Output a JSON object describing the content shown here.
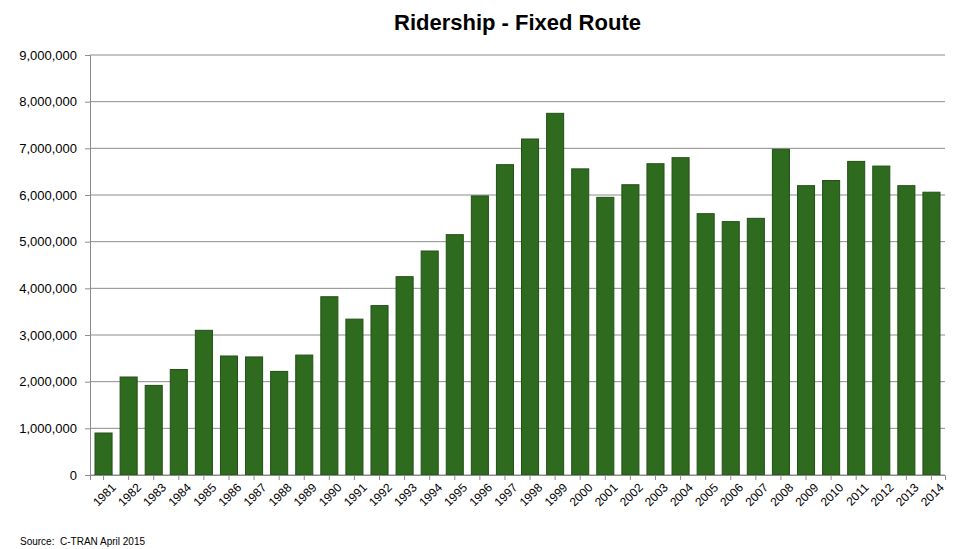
{
  "chart_data": {
    "type": "bar",
    "title": "Ridership - Fixed Route",
    "categories": [
      "1981",
      "1982",
      "1983",
      "1984",
      "1985",
      "1986",
      "1987",
      "1988",
      "1989",
      "1990",
      "1991",
      "1992",
      "1993",
      "1994",
      "1995",
      "1996",
      "1997",
      "1998",
      "1999",
      "2000",
      "2001",
      "2002",
      "2003",
      "2004",
      "2005",
      "2006",
      "2007",
      "2008",
      "2009",
      "2010",
      "2011",
      "2012",
      "2013",
      "2014"
    ],
    "values": [
      900000,
      2100000,
      1920000,
      2260000,
      3100000,
      2550000,
      2530000,
      2220000,
      2570000,
      3820000,
      3340000,
      3630000,
      4250000,
      4800000,
      5150000,
      5980000,
      6650000,
      7200000,
      7750000,
      6560000,
      5950000,
      6220000,
      6670000,
      6800000,
      5600000,
      5430000,
      5500000,
      6980000,
      6200000,
      6310000,
      6720000,
      6620000,
      6200000,
      6060000
    ],
    "color": "#2e6b1e",
    "ylim": [
      0,
      9000000
    ],
    "yticks": [
      0,
      {
        "value": 1000000,
        "label": "1,000,000"
      },
      {
        "value": 2000000,
        "label": "2,000,000"
      },
      {
        "value": 3000000,
        "label": "3,000,000"
      },
      {
        "value": 4000000,
        "label": "4,000,000"
      },
      {
        "value": 5000000,
        "label": "5,000,000"
      },
      {
        "value": 6000000,
        "label": "6,000,000"
      },
      {
        "value": 7000000,
        "label": "7,000,000"
      },
      {
        "value": 8000000,
        "label": "8,000,000"
      },
      {
        "value": 9000000,
        "label": "9,000,000"
      }
    ],
    "grid": true,
    "annotations": [
      "Source:  C-TRAN April 2015"
    ]
  }
}
